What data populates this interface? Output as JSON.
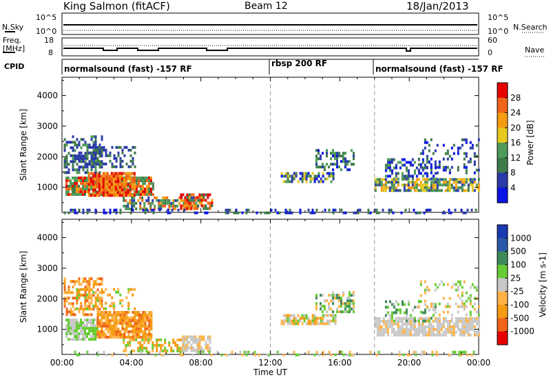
{
  "header": {
    "station": "King Salmon (fitACF)",
    "beam": "Beam 12",
    "date": "18/Jan/2013"
  },
  "status_rows": {
    "nsky_label": "N.Sky",
    "nsky_tick_top": "10^5",
    "nsky_tick_bottom": "10^0",
    "nsearch_label": "N.Search",
    "nsearch_tick_top": "10^5",
    "nsearch_tick_bottom": "10^0",
    "freq_label_1": "Freq.",
    "freq_label_2": "[MHz]",
    "freq_tick_top": "18",
    "freq_tick_bottom": "8",
    "nave_label": "Nave",
    "nave_tick_top": "60",
    "nave_tick_bottom": "0",
    "cpid_label": "CPID"
  },
  "cpid_segments": [
    {
      "label": "normalsound (fast) -157 RF",
      "start_hour": 0,
      "end_hour": 12
    },
    {
      "label": "rbsp 200 RF",
      "start_hour": 12,
      "end_hour": 18
    },
    {
      "label": "normalsound (fast) -157 RF",
      "start_hour": 18,
      "end_hour": 24
    }
  ],
  "colors": {
    "power": [
      "#0a14e6",
      "#2a3aa8",
      "#3f7a4a",
      "#4e9a5a",
      "#e6c81e",
      "#f59b12",
      "#f06418",
      "#e60000"
    ],
    "velocity": [
      "#e60000",
      "#f06418",
      "#f59b12",
      "#ffb347",
      "#c8c8c8",
      "#66cc33",
      "#3f8a5a",
      "#2a5aa8",
      "#1a3ab0"
    ]
  },
  "chart_data": [
    {
      "type": "heatmap",
      "title": "",
      "xlabel": "",
      "ylabel": "Slant Range [km]",
      "xlim": [
        0,
        24
      ],
      "ylim": [
        180,
        4600
      ],
      "yticks": [
        "1000",
        "2000",
        "3000",
        "4000"
      ],
      "colorbar_label": "Power [dB]",
      "colorbar_ticks": [
        "4",
        "8",
        "12",
        "16",
        "20",
        "24",
        "28"
      ],
      "patches": [
        {
          "x0": 0.2,
          "x1": 5.2,
          "y0": 800,
          "y1": 1350,
          "levels": [
            2,
            3,
            3,
            5,
            6,
            7
          ],
          "density": 0.85
        },
        {
          "x0": 1.5,
          "x1": 4.2,
          "y0": 700,
          "y1": 1500,
          "levels": [
            5,
            6,
            7
          ],
          "density": 0.9
        },
        {
          "x0": 0.1,
          "x1": 2.3,
          "y0": 1450,
          "y1": 2700,
          "levels": [
            1,
            1,
            2,
            3
          ],
          "density": 0.5
        },
        {
          "x0": 0.1,
          "x1": 4.2,
          "y0": 1700,
          "y1": 2350,
          "levels": [
            1,
            1,
            2
          ],
          "density": 0.35
        },
        {
          "x0": 3.5,
          "x1": 7.8,
          "y0": 280,
          "y1": 700,
          "levels": [
            1,
            2,
            3,
            5,
            6
          ],
          "density": 0.6
        },
        {
          "x0": 6.8,
          "x1": 8.6,
          "y0": 300,
          "y1": 800,
          "levels": [
            2,
            5,
            6,
            7
          ],
          "density": 0.7
        },
        {
          "x0": 12.6,
          "x1": 15.8,
          "y0": 1150,
          "y1": 1500,
          "levels": [
            0,
            1,
            2,
            3,
            4
          ],
          "density": 0.7
        },
        {
          "x0": 14.6,
          "x1": 16.8,
          "y0": 1600,
          "y1": 2250,
          "levels": [
            0,
            1,
            2,
            3
          ],
          "density": 0.45
        },
        {
          "x0": 18.0,
          "x1": 24.0,
          "y0": 850,
          "y1": 1300,
          "levels": [
            1,
            2,
            3,
            4,
            5
          ],
          "density": 0.75
        },
        {
          "x0": 18.6,
          "x1": 21.5,
          "y0": 1300,
          "y1": 1950,
          "levels": [
            0,
            1,
            2,
            3
          ],
          "density": 0.4
        },
        {
          "x0": 20.5,
          "x1": 24.0,
          "y0": 1450,
          "y1": 2600,
          "levels": [
            0,
            1,
            2
          ],
          "density": 0.22
        },
        {
          "x0": 0.1,
          "x1": 24.0,
          "y0": 190,
          "y1": 300,
          "levels": [
            0,
            1,
            2
          ],
          "density": 0.28
        }
      ]
    },
    {
      "type": "heatmap",
      "title": "",
      "xlabel": "Time UT",
      "ylabel": "Slant Range [km]",
      "xlim": [
        0,
        24
      ],
      "ylim": [
        180,
        4600
      ],
      "xticks": [
        "00:00",
        "04:00",
        "08:00",
        "12:00",
        "16:00",
        "20:00",
        "00:00"
      ],
      "yticks": [
        "1000",
        "2000",
        "3000",
        "4000"
      ],
      "colorbar_label": "Velocity [m s-1]",
      "colorbar_ticks": [
        "1000",
        "500",
        "100",
        "25",
        "-25",
        "-100",
        "-500",
        "-1000"
      ],
      "patches": [
        {
          "x0": 0.2,
          "x1": 2.0,
          "y0": 700,
          "y1": 1350,
          "levels": [
            4,
            4,
            5,
            5
          ],
          "density": 0.85
        },
        {
          "x0": 2.0,
          "x1": 5.2,
          "y0": 700,
          "y1": 1600,
          "levels": [
            1,
            2,
            2,
            3
          ],
          "density": 0.9
        },
        {
          "x0": 0.1,
          "x1": 2.3,
          "y0": 1500,
          "y1": 2700,
          "levels": [
            1,
            2,
            3
          ],
          "density": 0.5
        },
        {
          "x0": 0.8,
          "x1": 4.2,
          "y0": 1700,
          "y1": 2350,
          "levels": [
            2,
            3,
            5
          ],
          "density": 0.3
        },
        {
          "x0": 3.5,
          "x1": 7.0,
          "y0": 300,
          "y1": 700,
          "levels": [
            2,
            3,
            5
          ],
          "density": 0.55
        },
        {
          "x0": 6.8,
          "x1": 8.5,
          "y0": 300,
          "y1": 800,
          "levels": [
            4,
            4,
            3
          ],
          "density": 0.75
        },
        {
          "x0": 12.6,
          "x1": 15.8,
          "y0": 1150,
          "y1": 1500,
          "levels": [
            2,
            3,
            5,
            4
          ],
          "density": 0.7
        },
        {
          "x0": 14.6,
          "x1": 16.8,
          "y0": 1600,
          "y1": 2250,
          "levels": [
            5,
            6,
            4,
            3
          ],
          "density": 0.45
        },
        {
          "x0": 18.0,
          "x1": 24.0,
          "y0": 850,
          "y1": 1400,
          "levels": [
            4,
            4,
            4,
            3
          ],
          "density": 0.8
        },
        {
          "x0": 18.6,
          "x1": 21.5,
          "y0": 1300,
          "y1": 1950,
          "levels": [
            4,
            5,
            6
          ],
          "density": 0.4
        },
        {
          "x0": 20.5,
          "x1": 24.0,
          "y0": 1450,
          "y1": 2600,
          "levels": [
            4,
            5,
            3
          ],
          "density": 0.22
        },
        {
          "x0": 0.1,
          "x1": 24.0,
          "y0": 190,
          "y1": 300,
          "levels": [
            3,
            4,
            5
          ],
          "density": 0.25
        }
      ]
    }
  ]
}
